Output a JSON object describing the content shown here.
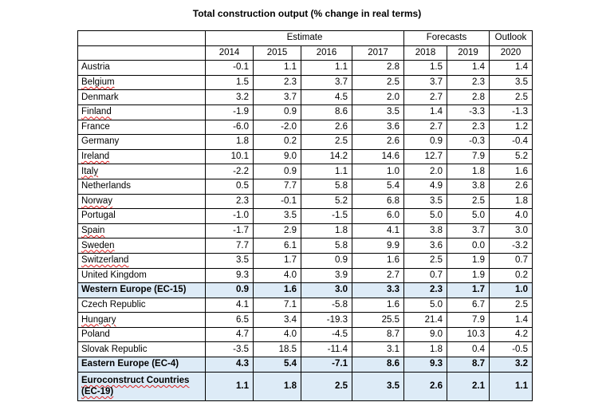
{
  "title": "Total construction output (% change in real terms)",
  "header_groups": [
    "Estimate",
    "Forecasts",
    "Outlook"
  ],
  "years": [
    "2014",
    "2015",
    "2016",
    "2017",
    "2018",
    "2019",
    "2020"
  ],
  "rows": [
    {
      "country": "Austria",
      "values": [
        "-0.1",
        "1.1",
        "1.1",
        "2.8",
        "1.5",
        "1.4",
        "1.4"
      ]
    },
    {
      "country": "Belgium",
      "values": [
        "1.5",
        "2.3",
        "3.7",
        "2.5",
        "3.7",
        "2.3",
        "3.5"
      ]
    },
    {
      "country": "Denmark",
      "values": [
        "3.2",
        "3.7",
        "4.5",
        "2.0",
        "2.7",
        "2.8",
        "2.5"
      ]
    },
    {
      "country": "Finland",
      "values": [
        "-1.9",
        "0.9",
        "8.6",
        "3.5",
        "1.4",
        "-3.3",
        "-1.3"
      ]
    },
    {
      "country": "France",
      "values": [
        "-6.0",
        "-2.0",
        "2.6",
        "3.6",
        "2.7",
        "2.3",
        "1.2"
      ]
    },
    {
      "country": "Germany",
      "values": [
        "1.8",
        "0.2",
        "2.5",
        "2.6",
        "0.9",
        "-0.3",
        "-0.4"
      ]
    },
    {
      "country": "Ireland",
      "values": [
        "10.1",
        "9.0",
        "14.2",
        "14.6",
        "12.7",
        "7.9",
        "5.2"
      ]
    },
    {
      "country": "Italy",
      "values": [
        "-2.2",
        "0.9",
        "1.1",
        "1.0",
        "2.0",
        "1.8",
        "1.6"
      ]
    },
    {
      "country": "Netherlands",
      "values": [
        "0.5",
        "7.7",
        "5.8",
        "5.4",
        "4.9",
        "3.8",
        "2.6"
      ]
    },
    {
      "country": "Norway",
      "values": [
        "2.3",
        "-0.1",
        "5.2",
        "6.8",
        "3.5",
        "2.5",
        "1.8"
      ]
    },
    {
      "country": "Portugal",
      "values": [
        "-1.0",
        "3.5",
        "-1.5",
        "6.0",
        "5.0",
        "5.0",
        "4.0"
      ]
    },
    {
      "country": "Spain",
      "values": [
        "-1.7",
        "2.9",
        "1.8",
        "4.1",
        "3.8",
        "3.7",
        "3.0"
      ]
    },
    {
      "country": "Sweden",
      "values": [
        "7.7",
        "6.1",
        "5.8",
        "9.9",
        "3.6",
        "0.0",
        "-3.2"
      ]
    },
    {
      "country": "Switzerland",
      "values": [
        "3.5",
        "1.7",
        "0.9",
        "1.6",
        "2.5",
        "1.9",
        "0.7"
      ]
    },
    {
      "country": "United Kingdom",
      "values": [
        "9.3",
        "4.0",
        "3.9",
        "2.7",
        "0.7",
        "1.9",
        "0.2"
      ]
    },
    {
      "country": "Western Europe (EC-15)",
      "values": [
        "0.9",
        "1.6",
        "3.0",
        "3.3",
        "2.3",
        "1.7",
        "1.0"
      ]
    },
    {
      "country": "Czech Republic",
      "values": [
        "4.1",
        "7.1",
        "-5.8",
        "1.6",
        "5.0",
        "6.7",
        "2.5"
      ]
    },
    {
      "country": "Hungary",
      "values": [
        "6.5",
        "3.4",
        "-19.3",
        "25.5",
        "21.4",
        "7.9",
        "1.4"
      ]
    },
    {
      "country": "Poland",
      "values": [
        "4.7",
        "4.0",
        "-4.5",
        "8.7",
        "9.0",
        "10.3",
        "4.2"
      ]
    },
    {
      "country": "Slovak Republic",
      "values": [
        "-3.5",
        "18.5",
        "-11.4",
        "3.1",
        "1.8",
        "0.4",
        "-0.5"
      ]
    },
    {
      "country": "Eastern Europe (EC-4)",
      "values": [
        "4.3",
        "5.4",
        "-7.1",
        "8.6",
        "9.3",
        "8.7",
        "3.2"
      ]
    },
    {
      "country": "Euroconstruct Countries (EC-19)",
      "values": [
        "1.1",
        "1.8",
        "2.5",
        "3.5",
        "2.6",
        "2.1",
        "1.1"
      ]
    }
  ]
}
